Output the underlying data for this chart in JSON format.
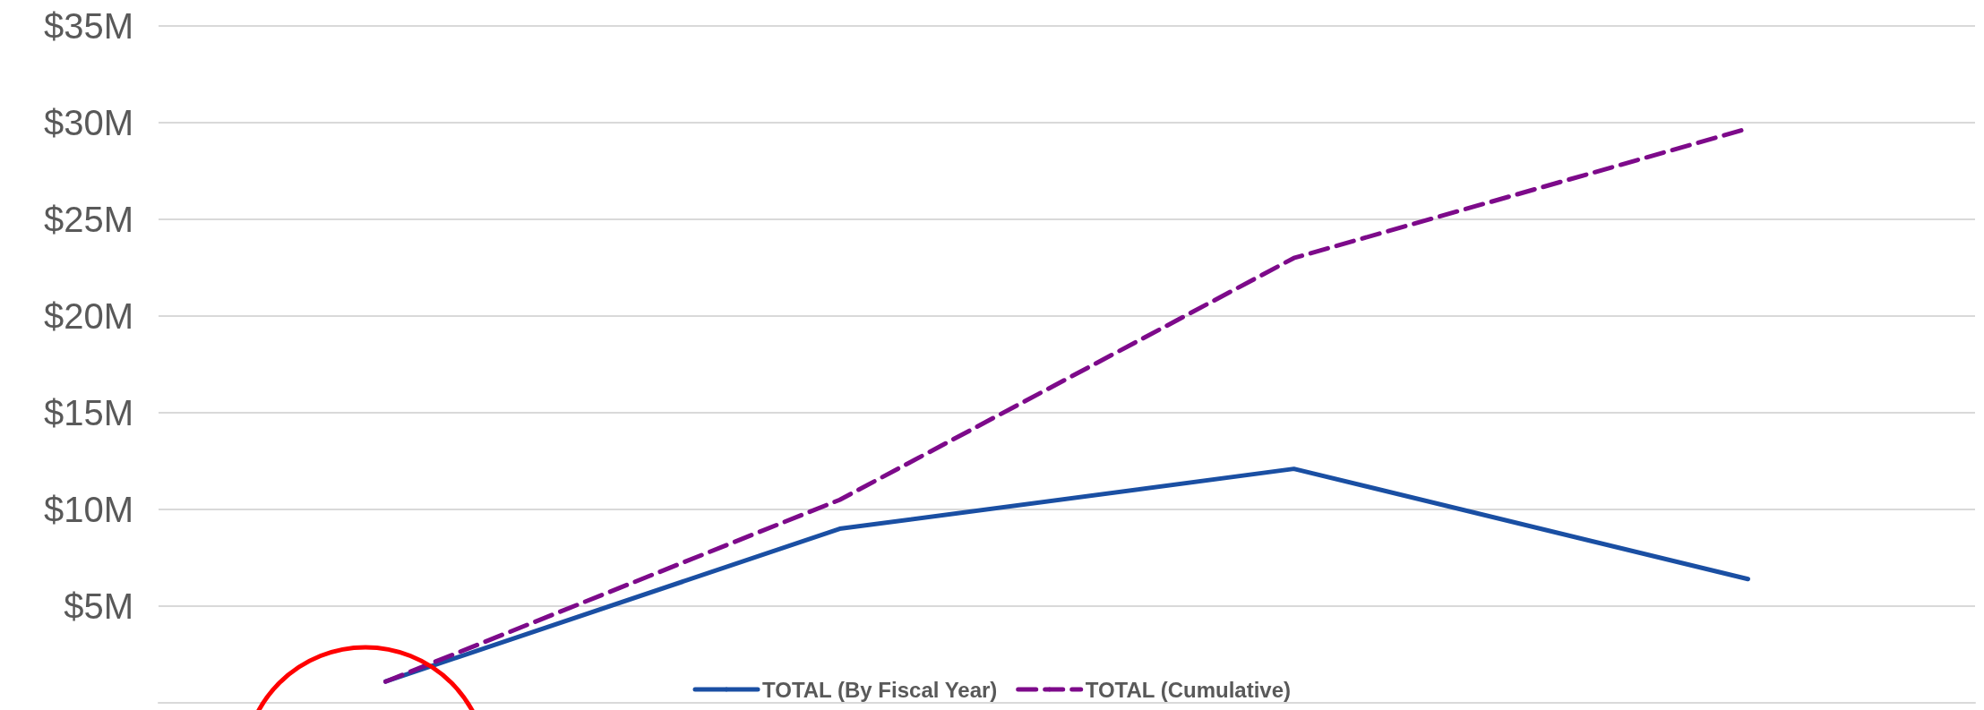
{
  "chart_data": {
    "type": "line",
    "categories": [
      null,
      null,
      null,
      null
    ],
    "series": [
      {
        "name": "TOTAL (By Fiscal Year)",
        "color": "#1a4fa3",
        "values": [
          1.1,
          9.0,
          12.1,
          6.4
        ],
        "line_style": "solid"
      },
      {
        "name": "TOTAL (Cumulative)",
        "color": "#7d0a8a",
        "values": [
          1.1,
          10.5,
          23.0,
          29.7
        ],
        "line_style": "dashed"
      }
    ],
    "ylim": [
      0,
      35
    ],
    "yticks": [
      {
        "value": 5,
        "label": "$5M"
      },
      {
        "value": 10,
        "label": "$10M"
      },
      {
        "value": 15,
        "label": "$15M"
      },
      {
        "value": 20,
        "label": "$20M"
      },
      {
        "value": 25,
        "label": "$25M"
      },
      {
        "value": 30,
        "label": "$30M"
      },
      {
        "value": 35,
        "label": "$35M"
      }
    ],
    "grid": "y",
    "legend": "bottom",
    "marker": "none"
  }
}
